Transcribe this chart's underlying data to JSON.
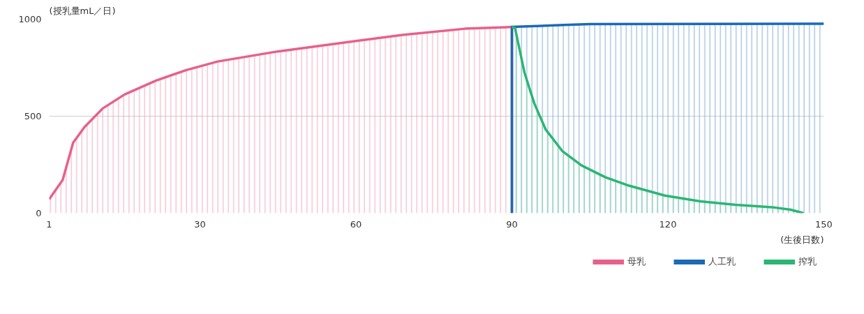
{
  "chart_data": {
    "type": "area",
    "xlabel": "(生後日数)",
    "ylabel": "(授乳量mL／日)",
    "xlim": [
      1,
      150
    ],
    "xticks": [
      1,
      30,
      60,
      90,
      120,
      150
    ],
    "ylim": [
      0,
      1000
    ],
    "yticks": [
      0,
      500,
      1000
    ],
    "grid": "y",
    "legend": "bottom right",
    "series": [
      {
        "name": "母乳",
        "color": "#e8608a",
        "x": [
          1,
          3.6,
          5.6,
          7.8,
          11.3,
          15.5,
          21.5,
          27.4,
          33.4,
          45,
          57,
          69,
          81,
          89,
          90,
          90
        ],
        "values": [
          72,
          172,
          363,
          444,
          540,
          612,
          683,
          738,
          782,
          834,
          877,
          919,
          951,
          959,
          960,
          0
        ]
      },
      {
        "name": "人工乳",
        "color": "#1a6ab8",
        "x": [
          90,
          90,
          95,
          100,
          105,
          150
        ],
        "values": [
          0,
          960,
          965,
          970,
          975,
          977
        ]
      },
      {
        "name": "搾乳",
        "color": "#2bb673",
        "x": [
          90,
          90.6,
          92.4,
          94.3,
          96.5,
          99.7,
          103.4,
          108,
          112.5,
          119.4,
          126.2,
          133,
          140,
          143.6,
          146.1
        ],
        "values": [
          960,
          954,
          726,
          566,
          431,
          320,
          246,
          185,
          142,
          91,
          61,
          43,
          31,
          18,
          0
        ]
      }
    ]
  }
}
